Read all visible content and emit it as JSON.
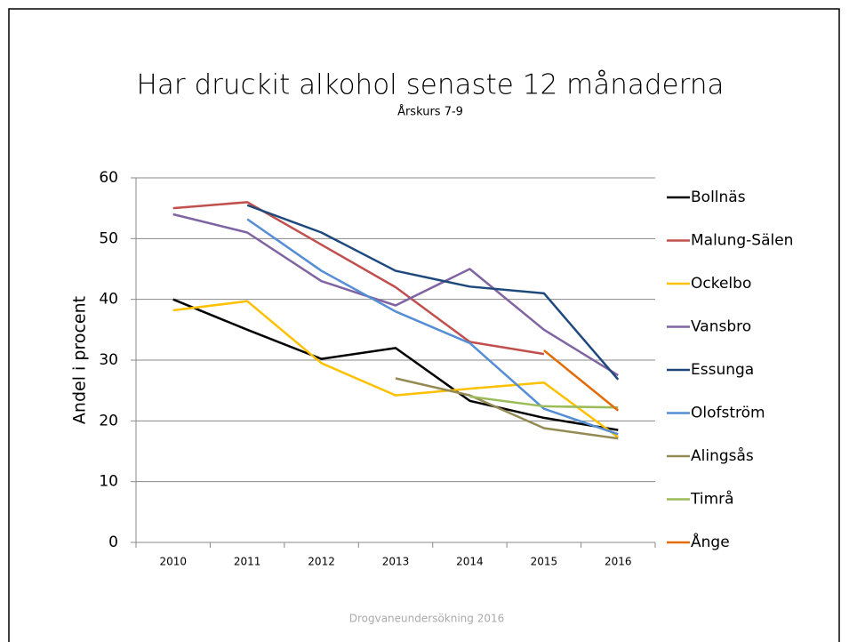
{
  "chart_data": {
    "type": "line",
    "title": "Har druckit alkohol senaste 12 månaderna",
    "subtitle": "Årskurs 7-9",
    "y_label": "Andel i procent",
    "categories": [
      "2010",
      "2011",
      "2012",
      "2013",
      "2014",
      "2015",
      "2016"
    ],
    "series": [
      {
        "name": "Bollnäs",
        "color": "#000000",
        "values": [
          40,
          35,
          30.2,
          32,
          23.3,
          20.5,
          18.5
        ]
      },
      {
        "name": "Malung-Sälen",
        "color": "#c0504d",
        "values": [
          55,
          56,
          49,
          42,
          33,
          31,
          null
        ]
      },
      {
        "name": "Ockelbo",
        "color": "#ffc000",
        "values": [
          38.2,
          39.7,
          29.5,
          24.2,
          25.3,
          26.3,
          17.3
        ]
      },
      {
        "name": "Vansbro",
        "color": "#8064a2",
        "values": [
          54,
          51,
          43,
          39,
          45,
          35,
          27.5
        ]
      },
      {
        "name": "Essunga",
        "color": "#1f497d",
        "values": [
          null,
          55.5,
          51,
          44.7,
          42.1,
          41,
          26.8
        ]
      },
      {
        "name": "Olofström",
        "color": "#558ed5",
        "values": [
          null,
          53.2,
          44.7,
          38,
          32.8,
          22,
          17.8
        ]
      },
      {
        "name": "Alingsås",
        "color": "#948a54",
        "values": [
          null,
          null,
          null,
          27,
          24.2,
          18.8,
          17.1
        ]
      },
      {
        "name": "Timrå",
        "color": "#9bbb59",
        "values": [
          null,
          null,
          null,
          null,
          24,
          22.4,
          22.2
        ]
      },
      {
        "name": "Ånge",
        "color": "#e36c09",
        "values": [
          null,
          null,
          null,
          null,
          null,
          31.6,
          21.7
        ]
      }
    ],
    "ylim": [
      0,
      60
    ],
    "yticks": [
      0,
      10,
      20,
      30,
      40,
      50,
      60
    ],
    "grid": true,
    "legend": "right"
  },
  "footer": "Drogvaneundersökning 2016"
}
